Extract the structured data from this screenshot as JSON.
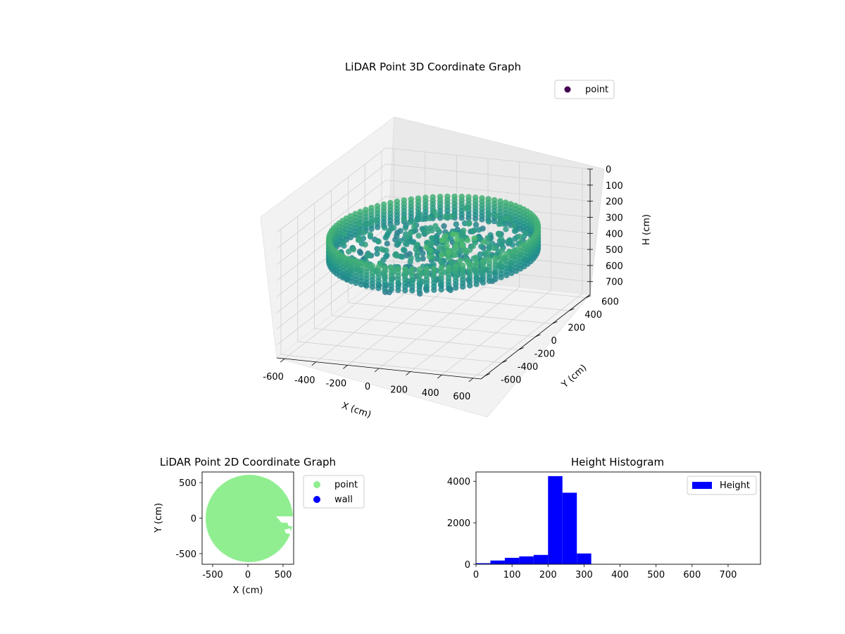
{
  "chart_data": [
    {
      "type": "scatter",
      "projection": "3d",
      "title": "LiDAR Point 3D Coordinate Graph",
      "xlabel": "X (cm)",
      "ylabel": "Y (cm)",
      "zlabel": "H (cm)",
      "xlim": [
        -650,
        650
      ],
      "ylim": [
        -650,
        650
      ],
      "zlim": [
        780,
        0
      ],
      "x_ticks": [
        -600,
        -400,
        -200,
        0,
        200,
        400,
        600
      ],
      "y_ticks": [
        -600,
        -400,
        -200,
        0,
        200,
        400,
        600
      ],
      "z_ticks": [
        0,
        100,
        200,
        300,
        400,
        500,
        600,
        700
      ],
      "z_inverted": true,
      "colormap": "viridis",
      "grid": true,
      "legend": "top-right",
      "series": [
        {
          "name": "point",
          "color": "#440154",
          "description": "ring of points at radius ~600 cm spanning height ~200-350 cm plus inner scatter",
          "ring_radius": 600,
          "height_range": [
            200,
            350
          ]
        }
      ]
    },
    {
      "type": "scatter",
      "title": "LiDAR Point 2D Coordinate Graph",
      "xlabel": "X (cm)",
      "ylabel": "Y (cm)",
      "xlim": [
        -650,
        650
      ],
      "ylim": [
        -650,
        650
      ],
      "x_ticks": [
        -500,
        0,
        500
      ],
      "y_ticks": [
        -500,
        0,
        500
      ],
      "grid": false,
      "legend": "outside-right",
      "series": [
        {
          "name": "point",
          "color": "#90ee90",
          "shape": "filled disc radius ~620 cm"
        },
        {
          "name": "wall",
          "color": "#0000ff",
          "shape": "none visible"
        }
      ]
    },
    {
      "type": "bar",
      "title": "Height Histogram",
      "xlabel": "",
      "ylabel": "",
      "xlim": [
        0,
        790
      ],
      "ylim": [
        0,
        4450
      ],
      "x_ticks": [
        0,
        100,
        200,
        300,
        400,
        500,
        600,
        700
      ],
      "y_ticks": [
        0,
        2000,
        4000
      ],
      "legend": "top-right",
      "series": [
        {
          "name": "Height",
          "color": "#0000ff",
          "bins": [
            {
              "from": 0,
              "to": 40,
              "value": 50
            },
            {
              "from": 40,
              "to": 80,
              "value": 180
            },
            {
              "from": 80,
              "to": 120,
              "value": 310
            },
            {
              "from": 120,
              "to": 160,
              "value": 380
            },
            {
              "from": 160,
              "to": 200,
              "value": 450
            },
            {
              "from": 200,
              "to": 240,
              "value": 4250
            },
            {
              "from": 240,
              "to": 280,
              "value": 3450
            },
            {
              "from": 280,
              "to": 320,
              "value": 520
            },
            {
              "from": 320,
              "to": 360,
              "value": 10
            },
            {
              "from": 360,
              "to": 400,
              "value": 5
            },
            {
              "from": 400,
              "to": 440,
              "value": 3
            },
            {
              "from": 440,
              "to": 480,
              "value": 2
            },
            {
              "from": 480,
              "to": 520,
              "value": 2
            },
            {
              "from": 520,
              "to": 560,
              "value": 1
            },
            {
              "from": 560,
              "to": 600,
              "value": 1
            },
            {
              "from": 600,
              "to": 640,
              "value": 1
            },
            {
              "from": 640,
              "to": 680,
              "value": 1
            },
            {
              "from": 680,
              "to": 720,
              "value": 1
            },
            {
              "from": 720,
              "to": 760,
              "value": 1
            },
            {
              "from": 760,
              "to": 790,
              "value": 1
            }
          ]
        }
      ]
    }
  ]
}
